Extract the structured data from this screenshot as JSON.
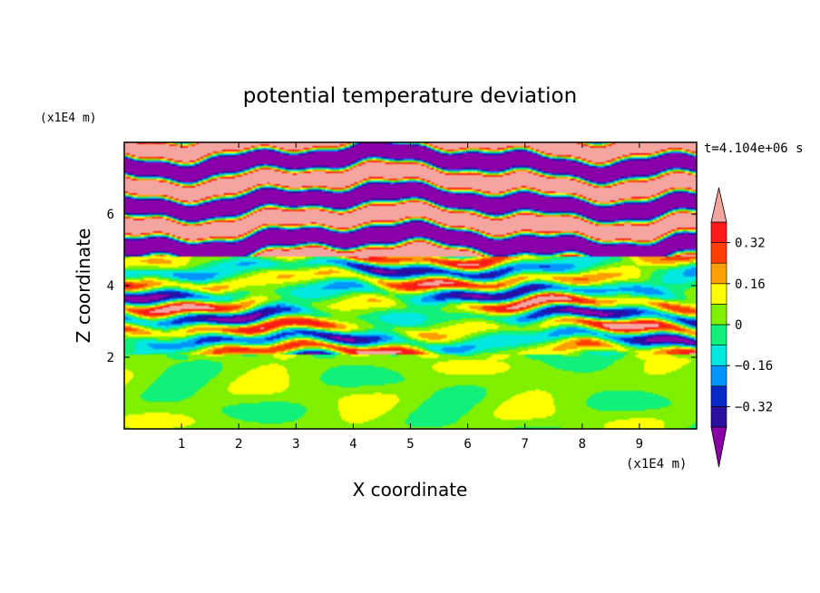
{
  "chart_data": {
    "type": "heatmap",
    "title": "potential temperature deviation",
    "xlabel": "X coordinate",
    "ylabel": "Z coordinate",
    "x_unit": "(x1E4 m)",
    "y_unit": "(x1E4 m)",
    "time_label": "t=4.104e+06 s",
    "xlim": [
      0,
      10
    ],
    "ylim": [
      0,
      8
    ],
    "x_ticks": [
      1,
      2,
      3,
      4,
      5,
      6,
      7,
      8,
      9
    ],
    "y_ticks": [
      2,
      4,
      6
    ],
    "colorbar": {
      "levels": [
        -0.4,
        -0.32,
        -0.24,
        -0.16,
        -0.08,
        0,
        0.08,
        0.16,
        0.24,
        0.32,
        0.4
      ],
      "tick_labels": [
        "0.32",
        "0.16",
        "0",
        "−0.16",
        "−0.32"
      ],
      "tick_values": [
        0.32,
        0.16,
        0,
        -0.16,
        -0.32
      ],
      "colors": [
        "#8a00a8",
        "#2b0fa0",
        "#0a2ac8",
        "#0095ff",
        "#00e8e0",
        "#10f07a",
        "#7ef000",
        "#ffff00",
        "#ffa000",
        "#ff4000",
        "#ff1a1a",
        "#f5a5a0"
      ],
      "extend": "both"
    },
    "regions": [
      {
        "z_range": [
          0,
          2.1
        ],
        "pattern": "mostly green (~0) with lighter yellow-green swirls"
      },
      {
        "z_range": [
          2.1,
          4.8
        ],
        "pattern": "mixed thin horizontal bands spanning full color range"
      },
      {
        "z_range": [
          4.8,
          8
        ],
        "pattern": "alternating pink (>0.4) and purple (<-0.4) horizontal bands"
      }
    ]
  }
}
